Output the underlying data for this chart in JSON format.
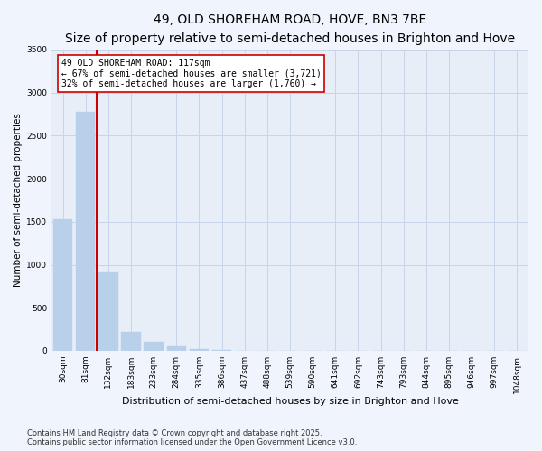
{
  "title1": "49, OLD SHOREHAM ROAD, HOVE, BN3 7BE",
  "title2": "Size of property relative to semi-detached houses in Brighton and Hove",
  "xlabel": "Distribution of semi-detached houses by size in Brighton and Hove",
  "ylabel": "Number of semi-detached properties",
  "categories": [
    "30sqm",
    "81sqm",
    "132sqm",
    "183sqm",
    "233sqm",
    "284sqm",
    "335sqm",
    "386sqm",
    "437sqm",
    "488sqm",
    "539sqm",
    "590sqm",
    "641sqm",
    "692sqm",
    "743sqm",
    "793sqm",
    "844sqm",
    "895sqm",
    "946sqm",
    "997sqm",
    "1048sqm"
  ],
  "values": [
    1530,
    2780,
    920,
    215,
    100,
    55,
    20,
    5,
    0,
    0,
    0,
    0,
    0,
    0,
    0,
    0,
    0,
    0,
    0,
    0,
    0
  ],
  "bar_color": "#b8d0ea",
  "bar_edge_color": "#b8d0ea",
  "grid_color": "#c8d4e8",
  "background_color": "#f0f4fc",
  "plot_bg_color": "#e8eef8",
  "vline_color": "#cc0000",
  "vline_x": 1.5,
  "annotation_title": "49 OLD SHOREHAM ROAD: 117sqm",
  "arrow_left_text": "← 67% of semi-detached houses are smaller (3,721)",
  "arrow_right_text": "32% of semi-detached houses are larger (1,760) →",
  "annotation_box_color": "#cc0000",
  "ylim": [
    0,
    3500
  ],
  "yticks": [
    0,
    500,
    1000,
    1500,
    2000,
    2500,
    3000,
    3500
  ],
  "footnote1": "Contains HM Land Registry data © Crown copyright and database right 2025.",
  "footnote2": "Contains public sector information licensed under the Open Government Licence v3.0.",
  "title1_fontsize": 10,
  "title2_fontsize": 8.5,
  "xlabel_fontsize": 8,
  "ylabel_fontsize": 7.5,
  "tick_fontsize": 6.5,
  "annotation_fontsize": 7,
  "footnote_fontsize": 6
}
